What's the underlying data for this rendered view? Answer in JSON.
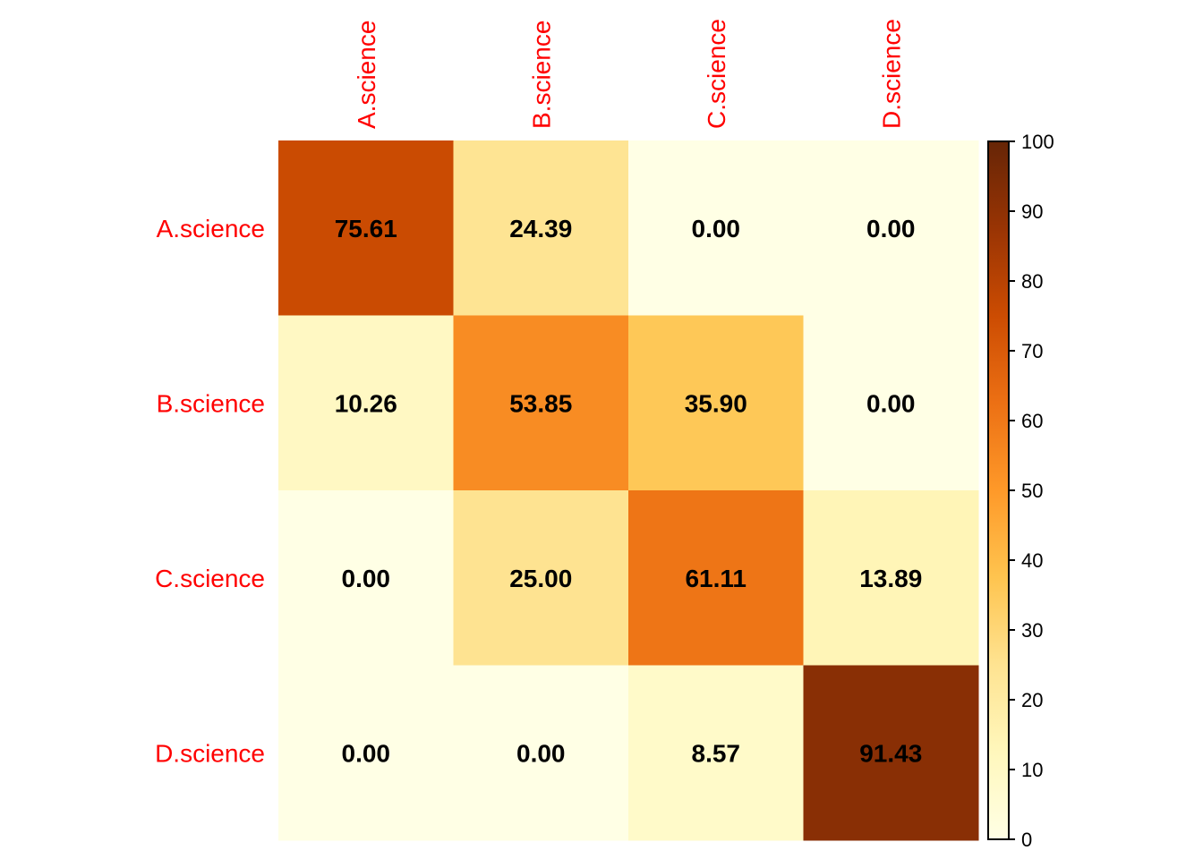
{
  "chart_data": {
    "type": "heatmap",
    "title": "",
    "row_labels": [
      "A.science",
      "B.science",
      "C.science",
      "D.science"
    ],
    "col_labels": [
      "A.science",
      "B.science",
      "C.science",
      "D.science"
    ],
    "values": [
      [
        75.61,
        24.39,
        0.0,
        0.0
      ],
      [
        10.26,
        53.85,
        35.9,
        0.0
      ],
      [
        0.0,
        25.0,
        61.11,
        13.89
      ],
      [
        0.0,
        0.0,
        8.57,
        91.43
      ]
    ],
    "value_labels": [
      [
        "75.61",
        "24.39",
        "0.00",
        "0.00"
      ],
      [
        "10.26",
        "53.85",
        "35.90",
        "0.00"
      ],
      [
        "0.00",
        "25.00",
        "61.11",
        "13.89"
      ],
      [
        "0.00",
        "0.00",
        "8.57",
        "91.43"
      ]
    ],
    "colorbar": {
      "range": [
        0,
        100
      ],
      "ticks": [
        0,
        10,
        20,
        30,
        40,
        50,
        60,
        70,
        80,
        90,
        100
      ],
      "tick_labels": [
        "0",
        "10",
        "20",
        "30",
        "40",
        "50",
        "60",
        "70",
        "80",
        "90",
        "100"
      ],
      "palette": [
        "#FFFFE5",
        "#FFF7BC",
        "#FEE391",
        "#FEC44F",
        "#FE9929",
        "#EC7014",
        "#CC4C02",
        "#993404",
        "#662506"
      ],
      "placement": "right"
    },
    "label_color": "#FF0000",
    "value_text_color": "#000000"
  }
}
